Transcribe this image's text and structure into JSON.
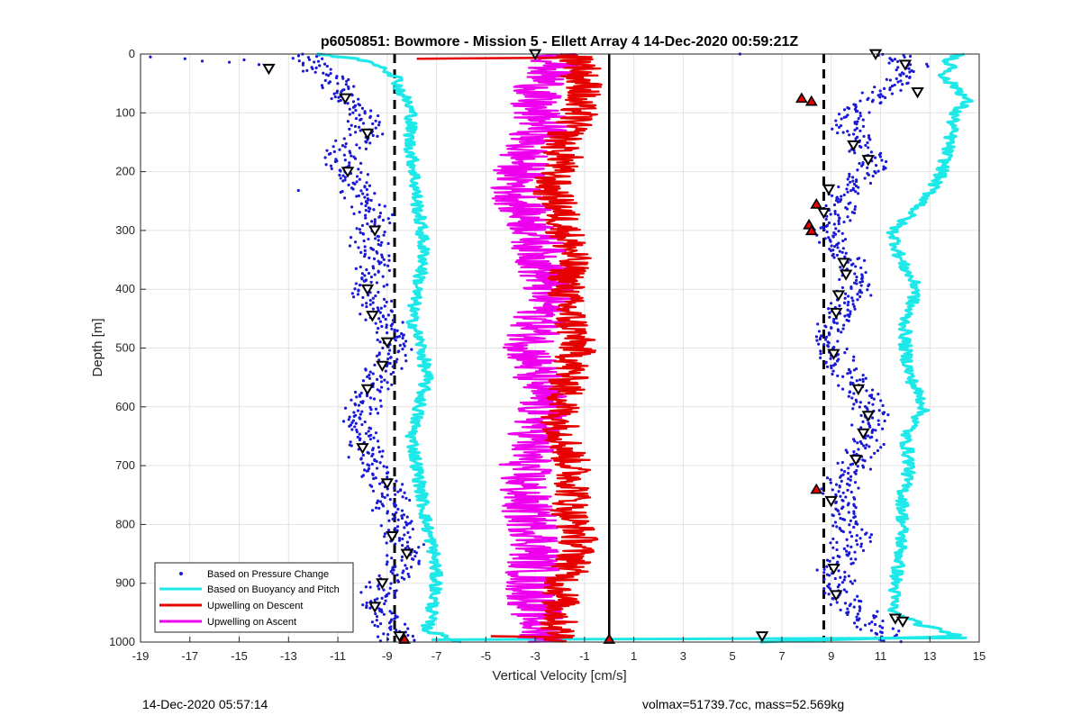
{
  "chart_data": {
    "type": "scatter",
    "title": "p6050851: Bowmore - Mission 5 - Ellett Array 4 14-Dec-2020 00:59:21Z",
    "xlabel": "Vertical Velocity [cm/s]",
    "ylabel": "Depth [m]",
    "xlim": [
      -19,
      15
    ],
    "ylim": [
      0,
      1000
    ],
    "y_reversed": true,
    "x_ticks": [
      -19,
      -17,
      -15,
      -13,
      -11,
      -9,
      -7,
      -5,
      -3,
      -1,
      1,
      3,
      5,
      7,
      9,
      11,
      13,
      15
    ],
    "y_ticks": [
      0,
      100,
      200,
      300,
      400,
      500,
      600,
      700,
      800,
      900,
      1000
    ],
    "grid": true,
    "legend_position": "bottom-left",
    "reference_lines": [
      {
        "x": -8.7,
        "style": "dashed",
        "color": "#000000"
      },
      {
        "x": 8.7,
        "style": "dashed",
        "color": "#000000"
      },
      {
        "x": 0,
        "style": "solid",
        "color": "#000000"
      }
    ],
    "series": [
      {
        "name": "Based on Pressure Change",
        "style": "points",
        "color": "#1a1ad6",
        "profiles": [
          {
            "depth": [
              0,
              20,
              50,
              80,
              100,
              130,
              160,
              190,
              220,
              250,
              280,
              300,
              330,
              360,
              400,
              430,
              460,
              490,
              520,
              550,
              580,
              620,
              660,
              700,
              740,
              780,
              820,
              850,
              880,
              910,
              940,
              970,
              1000
            ],
            "velocity": [
              -12.5,
              -12.0,
              -11.0,
              -10.5,
              -10.2,
              -9.8,
              -10.6,
              -10.8,
              -10.3,
              -10.0,
              -9.5,
              -9.8,
              -9.6,
              -9.3,
              -9.8,
              -9.6,
              -9.0,
              -8.7,
              -8.9,
              -9.3,
              -9.7,
              -10.2,
              -10.0,
              -9.5,
              -9.0,
              -8.8,
              -8.4,
              -8.2,
              -8.6,
              -9.2,
              -9.4,
              -8.9,
              -8.4
            ]
          },
          {
            "depth": [
              0,
              20,
              50,
              80,
              100,
              130,
              160,
              190,
              220,
              250,
              280,
              300,
              330,
              360,
              400,
              430,
              460,
              490,
              520,
              550,
              580,
              620,
              660,
              700,
              740,
              780,
              820,
              850,
              880,
              910,
              940,
              970,
              1000
            ],
            "velocity": [
              11.5,
              12.2,
              11.6,
              10.5,
              9.8,
              9.6,
              10.2,
              10.6,
              9.8,
              9.4,
              9.0,
              8.8,
              9.3,
              9.8,
              10.0,
              9.6,
              9.2,
              8.9,
              9.2,
              9.8,
              10.3,
              10.6,
              10.4,
              9.9,
              9.4,
              9.6,
              10.0,
              9.5,
              9.1,
              9.3,
              9.8,
              10.6,
              11.4
            ]
          }
        ]
      },
      {
        "name": "Based on Buoyancy and Pitch",
        "style": "line",
        "color": "#1fe8e8",
        "profiles": [
          {
            "depth": [
              0,
              10,
              20,
              40,
              60,
              80,
              100,
              150,
              200,
              250,
              300,
              350,
              400,
              450,
              500,
              550,
              600,
              650,
              700,
              750,
              800,
              850,
              900,
              950,
              980,
              1000
            ],
            "velocity": [
              -11.8,
              -10.0,
              -9.2,
              -8.6,
              -8.5,
              -8.2,
              -8.0,
              -8.1,
              -7.9,
              -7.8,
              -7.6,
              -7.5,
              -7.8,
              -8.0,
              -7.6,
              -7.4,
              -7.7,
              -8.0,
              -7.8,
              -7.6,
              -7.4,
              -7.1,
              -7.0,
              -7.2,
              -7.4,
              -6.0
            ]
          },
          {
            "depth": [
              0,
              10,
              20,
              40,
              60,
              80,
              100,
              150,
              200,
              250,
              300,
              350,
              400,
              450,
              500,
              550,
              600,
              650,
              700,
              750,
              800,
              850,
              900,
              950,
              970,
              990,
              1000
            ],
            "velocity": [
              14.5,
              13.5,
              14.0,
              13.5,
              14.2,
              14.5,
              14.0,
              13.8,
              13.5,
              12.8,
              11.5,
              11.8,
              12.5,
              12.0,
              12.0,
              12.2,
              12.8,
              12.0,
              12.2,
              11.9,
              11.9,
              11.8,
              11.6,
              11.5,
              12.6,
              14.2,
              6.0
            ]
          }
        ]
      },
      {
        "name": "Upwelling on Descent",
        "style": "line",
        "color": "#e60000",
        "depth": [
          0,
          20,
          40,
          60,
          80,
          100,
          120,
          140,
          160,
          180,
          200,
          230,
          260,
          300,
          340,
          380,
          420,
          460,
          500,
          540,
          580,
          620,
          660,
          700,
          740,
          780,
          820,
          860,
          900,
          940,
          980,
          1000
        ],
        "velocity": [
          -1.5,
          -1.0,
          -1.2,
          -0.9,
          -1.4,
          -1.2,
          -1.5,
          -1.8,
          -2.0,
          -1.8,
          -2.2,
          -2.4,
          -2.0,
          -1.8,
          -1.5,
          -1.7,
          -1.8,
          -1.5,
          -1.3,
          -1.6,
          -1.8,
          -2.0,
          -1.8,
          -1.5,
          -1.4,
          -1.6,
          -1.2,
          -1.4,
          -1.9,
          -2.0,
          -2.1,
          -1.8
        ]
      },
      {
        "name": "Upwelling on Ascent",
        "style": "line",
        "color": "#ee00ee",
        "depth": [
          0,
          20,
          40,
          60,
          80,
          100,
          120,
          140,
          160,
          180,
          200,
          230,
          260,
          300,
          340,
          380,
          420,
          460,
          500,
          540,
          580,
          620,
          660,
          700,
          740,
          780,
          820,
          860,
          900,
          940,
          980,
          1000
        ],
        "velocity": [
          -2.0,
          -2.2,
          -2.6,
          -2.8,
          -3.2,
          -3.0,
          -2.6,
          -3.0,
          -3.4,
          -3.5,
          -3.6,
          -3.8,
          -3.5,
          -3.0,
          -2.8,
          -2.6,
          -2.5,
          -2.9,
          -3.2,
          -3.0,
          -2.7,
          -2.8,
          -3.1,
          -3.4,
          -3.5,
          -3.3,
          -2.9,
          -3.0,
          -3.2,
          -3.0,
          -2.8,
          -2.5
        ]
      }
    ],
    "markers": {
      "down_triangles": [
        {
          "x": -13.8,
          "y": 25
        },
        {
          "x": -3.0,
          "y": 0
        },
        {
          "x": 10.8,
          "y": 0
        },
        {
          "x": 12.0,
          "y": 18
        },
        {
          "x": 12.5,
          "y": 65
        },
        {
          "x": -10.7,
          "y": 75
        },
        {
          "x": -9.8,
          "y": 135
        },
        {
          "x": 9.9,
          "y": 155
        },
        {
          "x": 10.5,
          "y": 180
        },
        {
          "x": -10.6,
          "y": 200
        },
        {
          "x": 8.9,
          "y": 230
        },
        {
          "x": 8.7,
          "y": 270
        },
        {
          "x": -9.5,
          "y": 300
        },
        {
          "x": 9.5,
          "y": 355
        },
        {
          "x": 9.6,
          "y": 375
        },
        {
          "x": -9.8,
          "y": 400
        },
        {
          "x": 9.3,
          "y": 410
        },
        {
          "x": -9.6,
          "y": 445
        },
        {
          "x": 9.2,
          "y": 440
        },
        {
          "x": -9.0,
          "y": 490
        },
        {
          "x": 9.1,
          "y": 510
        },
        {
          "x": -9.2,
          "y": 530
        },
        {
          "x": -9.8,
          "y": 570
        },
        {
          "x": 10.1,
          "y": 570
        },
        {
          "x": 10.5,
          "y": 615
        },
        {
          "x": -10.0,
          "y": 670
        },
        {
          "x": 10.3,
          "y": 645
        },
        {
          "x": 10.0,
          "y": 690
        },
        {
          "x": -9.0,
          "y": 730
        },
        {
          "x": 9.0,
          "y": 760
        },
        {
          "x": -8.8,
          "y": 820
        },
        {
          "x": -8.2,
          "y": 850
        },
        {
          "x": 9.1,
          "y": 875
        },
        {
          "x": -9.2,
          "y": 900
        },
        {
          "x": 9.2,
          "y": 920
        },
        {
          "x": -9.5,
          "y": 940
        },
        {
          "x": 11.6,
          "y": 960
        },
        {
          "x": 11.9,
          "y": 965
        },
        {
          "x": -8.5,
          "y": 990
        },
        {
          "x": 6.2,
          "y": 990
        }
      ],
      "up_triangles": [
        {
          "x": 7.8,
          "y": 75
        },
        {
          "x": 8.2,
          "y": 80
        },
        {
          "x": 8.4,
          "y": 255
        },
        {
          "x": 8.1,
          "y": 290
        },
        {
          "x": 8.2,
          "y": 300
        },
        {
          "x": 8.4,
          "y": 740
        },
        {
          "x": -8.3,
          "y": 995
        },
        {
          "x": 0.0,
          "y": 995
        }
      ]
    },
    "footer_left": "14-Dec-2020 05:57:14",
    "footer_right": "volmax=51739.7cc, mass=52.569kg"
  }
}
